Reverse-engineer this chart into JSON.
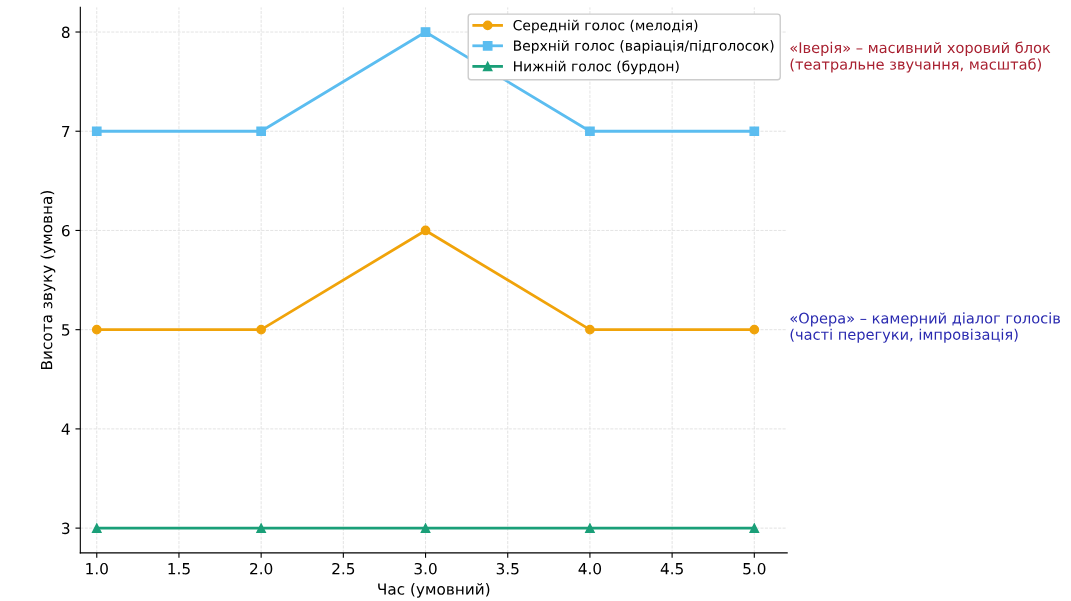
{
  "chart_data": {
    "type": "line",
    "xlabel": "Час (умовний)",
    "ylabel": "Висота звуку (умовна)",
    "x": [
      1,
      2,
      3,
      4,
      5
    ],
    "series": [
      {
        "name": "Середній голос (мелодія)",
        "color": "#f0a30a",
        "marker": "circle",
        "values": [
          5,
          5,
          6,
          5,
          5
        ]
      },
      {
        "name": "Верхній голос (варіація/підголосок)",
        "color": "#5bbdf0",
        "marker": "square",
        "values": [
          7,
          7,
          8,
          7,
          7
        ]
      },
      {
        "name": "Нижній голос (бурдон)",
        "color": "#1a9f78",
        "marker": "triangle",
        "values": [
          3,
          3,
          3,
          3,
          3
        ]
      }
    ],
    "xlim": [
      0.9,
      5.2
    ],
    "xticks": [
      {
        "value": 1,
        "label": "1.0"
      },
      {
        "value": 1.5,
        "label": "1.5"
      },
      {
        "value": 2,
        "label": "2.0"
      },
      {
        "value": 2.5,
        "label": "2.5"
      },
      {
        "value": 3,
        "label": "3.0"
      },
      {
        "value": 3.5,
        "label": "3.5"
      },
      {
        "value": 4,
        "label": "4.0"
      },
      {
        "value": 4.5,
        "label": "4.5"
      },
      {
        "value": 5,
        "label": "5.0"
      }
    ],
    "ylim": [
      2.75,
      8.25
    ],
    "yticks": [
      3,
      4,
      5,
      6,
      7,
      8
    ],
    "grid": true,
    "legend": "top right",
    "line_style": "solid",
    "annotations": [
      "«Іверія» – масивний хоровий блок\n(театральне звучання, масштаб)",
      "«Орера» – камерний діалог голосів\n(часті перегуки, імпровізація)"
    ]
  }
}
